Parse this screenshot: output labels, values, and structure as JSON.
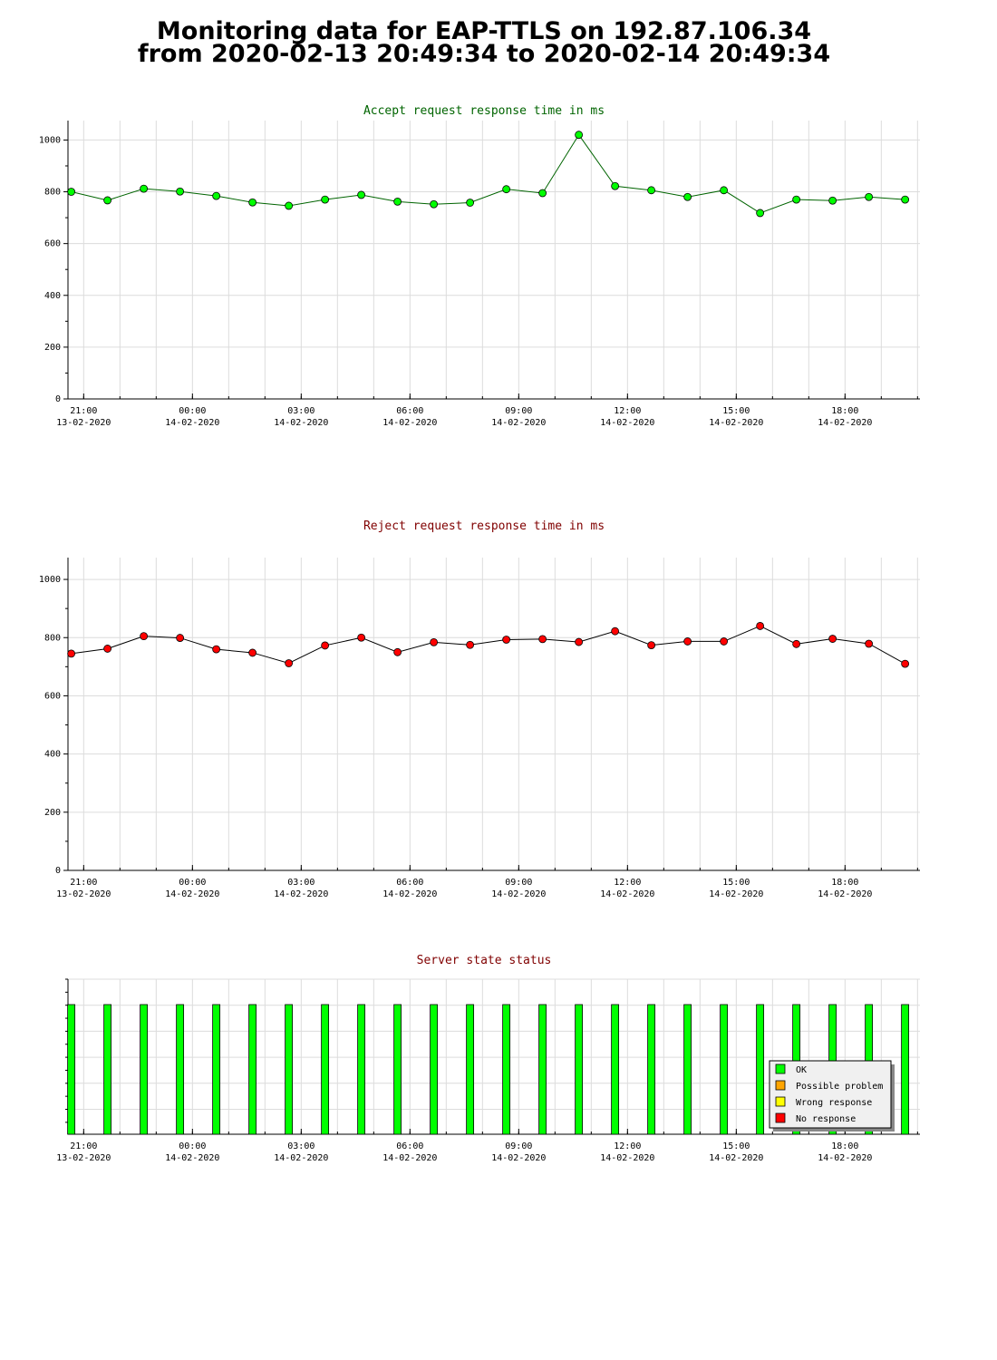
{
  "page": {
    "title_line1": "Monitoring data for EAP-TTLS on 192.87.106.34",
    "title_line2": "from 2020-02-13 20:49:34 to 2020-02-14 20:49:34"
  },
  "x_axis": {
    "ticks": [
      {
        "time": "21:00",
        "date": "13-02-2020"
      },
      {
        "time": "00:00",
        "date": "14-02-2020"
      },
      {
        "time": "03:00",
        "date": "14-02-2020"
      },
      {
        "time": "06:00",
        "date": "14-02-2020"
      },
      {
        "time": "09:00",
        "date": "14-02-2020"
      },
      {
        "time": "12:00",
        "date": "14-02-2020"
      },
      {
        "time": "15:00",
        "date": "14-02-2020"
      },
      {
        "time": "18:00",
        "date": "14-02-2020"
      }
    ]
  },
  "chart_data": [
    {
      "type": "line",
      "title": "Accept request response time in ms",
      "title_color": "#006400",
      "marker_color": "#00ff00",
      "line_color": "#006400",
      "xlabel": "",
      "ylabel": "",
      "ylim": [
        0,
        1075
      ],
      "yticks": [
        0,
        200,
        400,
        600,
        800,
        1000
      ],
      "x": [
        "2020-02-13 20:49",
        "2020-02-13 21:49",
        "2020-02-13 22:49",
        "2020-02-13 23:49",
        "2020-02-14 00:49",
        "2020-02-14 01:49",
        "2020-02-14 02:49",
        "2020-02-14 03:49",
        "2020-02-14 04:49",
        "2020-02-14 05:49",
        "2020-02-14 06:49",
        "2020-02-14 07:49",
        "2020-02-14 08:49",
        "2020-02-14 09:49",
        "2020-02-14 10:49",
        "2020-02-14 11:49",
        "2020-02-14 12:49",
        "2020-02-14 13:49",
        "2020-02-14 14:49",
        "2020-02-14 15:49",
        "2020-02-14 16:49",
        "2020-02-14 17:49",
        "2020-02-14 18:49",
        "2020-02-14 19:49"
      ],
      "values": [
        800,
        767,
        812,
        801,
        784,
        759,
        746,
        770,
        788,
        762,
        752,
        758,
        810,
        795,
        1020,
        822,
        806,
        780,
        806,
        718,
        770,
        766,
        780,
        770
      ],
      "grid": true
    },
    {
      "type": "line",
      "title": "Reject request response time in ms",
      "title_color": "#800000",
      "marker_color": "#ff0000",
      "line_color": "#000000",
      "xlabel": "",
      "ylabel": "",
      "ylim": [
        0,
        1075
      ],
      "yticks": [
        0,
        200,
        400,
        600,
        800,
        1000
      ],
      "x": [
        "2020-02-13 20:49",
        "2020-02-13 21:49",
        "2020-02-13 22:49",
        "2020-02-13 23:49",
        "2020-02-14 00:49",
        "2020-02-14 01:49",
        "2020-02-14 02:49",
        "2020-02-14 03:49",
        "2020-02-14 04:49",
        "2020-02-14 05:49",
        "2020-02-14 06:49",
        "2020-02-14 07:49",
        "2020-02-14 08:49",
        "2020-02-14 09:49",
        "2020-02-14 10:49",
        "2020-02-14 11:49",
        "2020-02-14 12:49",
        "2020-02-14 13:49",
        "2020-02-14 14:49",
        "2020-02-14 15:49",
        "2020-02-14 16:49",
        "2020-02-14 17:49",
        "2020-02-14 18:49",
        "2020-02-14 19:49"
      ],
      "values": [
        745,
        762,
        805,
        799,
        760,
        748,
        712,
        773,
        800,
        750,
        784,
        775,
        793,
        795,
        785,
        822,
        774,
        787,
        787,
        840,
        778,
        796,
        779,
        710
      ],
      "grid": true
    },
    {
      "type": "bar",
      "title": "Server state status",
      "title_color": "#800000",
      "x": [
        "2020-02-13 20:49",
        "2020-02-13 21:49",
        "2020-02-13 22:49",
        "2020-02-13 23:49",
        "2020-02-14 00:49",
        "2020-02-14 01:49",
        "2020-02-14 02:49",
        "2020-02-14 03:49",
        "2020-02-14 04:49",
        "2020-02-14 05:49",
        "2020-02-14 06:49",
        "2020-02-14 07:49",
        "2020-02-14 08:49",
        "2020-02-14 09:49",
        "2020-02-14 10:49",
        "2020-02-14 11:49",
        "2020-02-14 12:49",
        "2020-02-14 13:49",
        "2020-02-14 14:49",
        "2020-02-14 15:49",
        "2020-02-14 16:49",
        "2020-02-14 17:49",
        "2020-02-14 18:49",
        "2020-02-14 19:49"
      ],
      "values": [
        "OK",
        "OK",
        "OK",
        "OK",
        "OK",
        "OK",
        "OK",
        "OK",
        "OK",
        "OK",
        "OK",
        "OK",
        "OK",
        "OK",
        "OK",
        "OK",
        "OK",
        "OK",
        "OK",
        "OK",
        "OK",
        "OK",
        "OK",
        "OK"
      ],
      "legend": [
        {
          "label": "OK",
          "color": "#00ff00"
        },
        {
          "label": "Possible problem",
          "color": "#ffa500"
        },
        {
          "label": "Wrong response",
          "color": "#ffff00"
        },
        {
          "label": "No response",
          "color": "#ff0000"
        }
      ],
      "legend_position": "bottom-right",
      "grid": true
    }
  ]
}
